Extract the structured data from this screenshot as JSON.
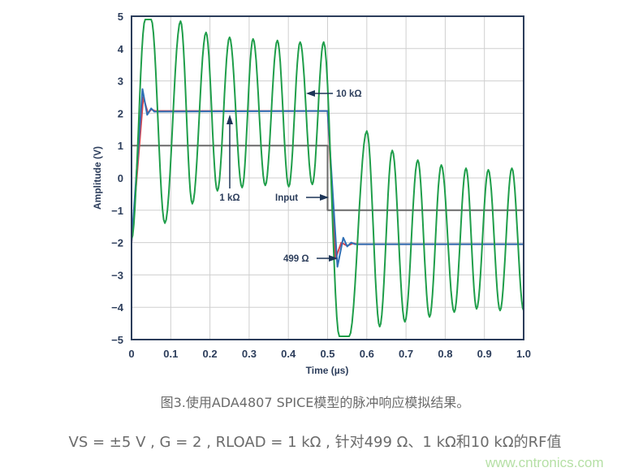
{
  "chart_data": {
    "type": "line",
    "xlabel": "Time (µs)",
    "ylabel": "Amplitude (V)",
    "xlim": [
      0,
      1.0
    ],
    "ylim": [
      -5,
      5
    ],
    "xticks": [
      "0",
      "0.1",
      "0.2",
      "0.3",
      "0.4",
      "0.5",
      "0.6",
      "0.7",
      "0.8",
      "0.9",
      "1.0"
    ],
    "yticks": [
      "5",
      "4",
      "3",
      "2",
      "1",
      "0",
      "−1",
      "−2",
      "−3",
      "−4",
      "−5"
    ],
    "grid": true,
    "series": [
      {
        "name": "Input",
        "color": "#6b6b6b",
        "points": [
          [
            0,
            1
          ],
          [
            0.5,
            1
          ],
          [
            0.5,
            -1
          ],
          [
            1.0,
            -1
          ]
        ]
      },
      {
        "name": "499 Ω",
        "color": "#d9434e",
        "points": [
          [
            0,
            -2
          ],
          [
            0.03,
            2.5
          ],
          [
            0.042,
            2.0
          ],
          [
            0.05,
            2.12
          ],
          [
            0.06,
            2.07
          ],
          [
            0.5,
            2.07
          ],
          [
            0.52,
            -2.5
          ],
          [
            0.535,
            -2.0
          ],
          [
            0.55,
            -2.1
          ],
          [
            0.565,
            -2.02
          ],
          [
            0.575,
            -2.05
          ],
          [
            1.0,
            -2.05
          ]
        ]
      },
      {
        "name": "1 kΩ",
        "color": "#2f6fb5",
        "points": [
          [
            0,
            -2
          ],
          [
            0.028,
            2.75
          ],
          [
            0.04,
            1.95
          ],
          [
            0.05,
            2.15
          ],
          [
            0.058,
            2.05
          ],
          [
            0.5,
            2.07
          ],
          [
            0.525,
            -2.75
          ],
          [
            0.54,
            -1.85
          ],
          [
            0.55,
            -2.12
          ],
          [
            0.56,
            -2.0
          ],
          [
            0.57,
            -2.05
          ],
          [
            1.0,
            -2.05
          ]
        ]
      },
      {
        "name": "10 kΩ",
        "color": "#1f9e4a",
        "extrema": [
          [
            0,
            -1.9
          ],
          [
            0.035,
            4.9
          ],
          [
            0.05,
            4.9
          ],
          [
            0.085,
            -1.4
          ],
          [
            0.125,
            4.85
          ],
          [
            0.155,
            -0.8
          ],
          [
            0.19,
            4.5
          ],
          [
            0.219,
            -0.4
          ],
          [
            0.25,
            4.35
          ],
          [
            0.282,
            -0.3
          ],
          [
            0.31,
            4.3
          ],
          [
            0.341,
            -0.23
          ],
          [
            0.372,
            4.25
          ],
          [
            0.401,
            -0.27
          ],
          [
            0.43,
            4.2
          ],
          [
            0.461,
            -0.2
          ],
          [
            0.49,
            4.2
          ],
          [
            0.53,
            -4.9
          ],
          [
            0.555,
            -4.9
          ],
          [
            0.6,
            1.45
          ],
          [
            0.633,
            -4.6
          ],
          [
            0.665,
            0.85
          ],
          [
            0.697,
            -4.45
          ],
          [
            0.73,
            0.55
          ],
          [
            0.76,
            -4.3
          ],
          [
            0.79,
            0.4
          ],
          [
            0.823,
            -4.15
          ],
          [
            0.853,
            0.3
          ],
          [
            0.88,
            -4.05
          ],
          [
            0.91,
            0.25
          ],
          [
            0.94,
            -4.1
          ],
          [
            0.97,
            0.3
          ],
          [
            1.0,
            -4.1
          ]
        ]
      }
    ],
    "annotations": {
      "r10k": "10 kΩ",
      "r1k": "1 kΩ",
      "input": "Input",
      "r499": "499 Ω"
    }
  },
  "caption": {
    "title": "图3.使用ADA4807 SPICE模型的脉冲响应模拟结果。",
    "detail": "VS = ±5 V , G = 2 , RLOAD = 1 kΩ , 针对499 Ω、1 kΩ和10 kΩ的RF值"
  },
  "watermark": "www.cntronics.com"
}
